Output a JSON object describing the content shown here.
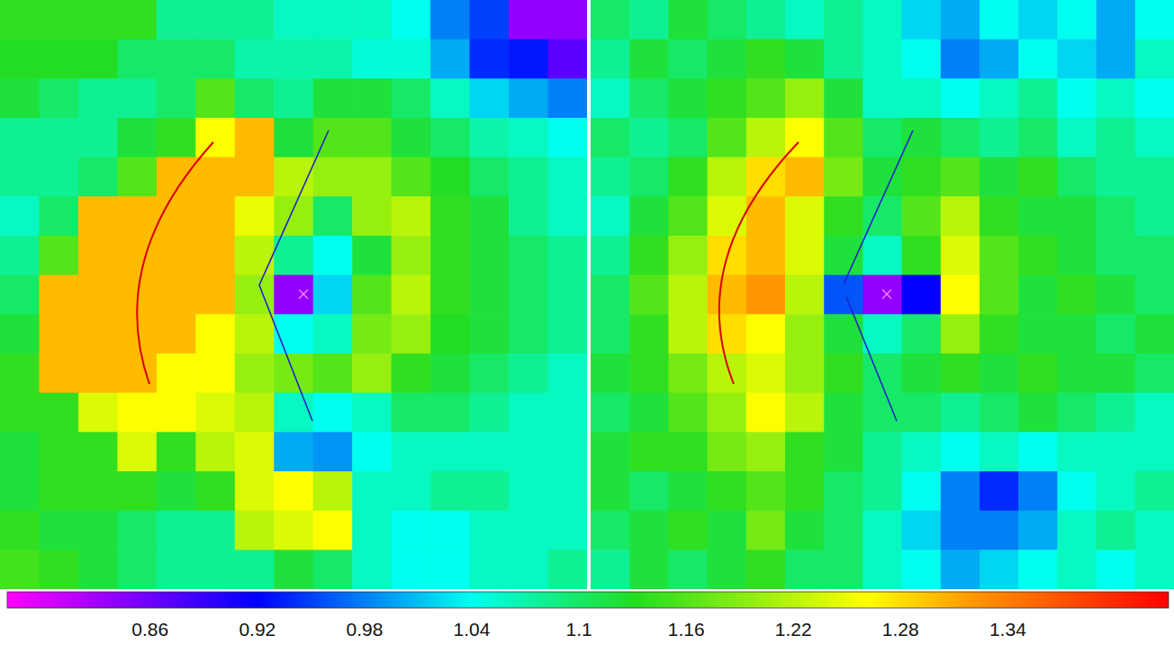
{
  "chart_data": {
    "type": "heatmap",
    "tick_labels": false,
    "panels": [
      {
        "cells": [
          [
            1.14,
            1.14,
            1.14,
            1.14,
            1.08,
            1.08,
            1.08,
            1.06,
            1.06,
            1.06,
            1.04,
            0.98,
            0.95,
            0.84,
            0.84
          ],
          [
            1.13,
            1.13,
            1.13,
            1.1,
            1.1,
            1.1,
            1.07,
            1.07,
            1.07,
            1.05,
            1.05,
            1.0,
            0.94,
            0.93,
            0.87
          ],
          [
            1.12,
            1.1,
            1.08,
            1.08,
            1.1,
            1.16,
            1.1,
            1.08,
            1.12,
            1.12,
            1.1,
            1.06,
            1.02,
            1.0,
            0.98
          ],
          [
            1.08,
            1.08,
            1.08,
            1.12,
            1.14,
            1.26,
            1.3,
            1.12,
            1.16,
            1.16,
            1.12,
            1.1,
            1.07,
            1.06,
            1.04
          ],
          [
            1.08,
            1.08,
            1.1,
            1.16,
            1.3,
            1.3,
            1.3,
            1.22,
            1.2,
            1.2,
            1.16,
            1.13,
            1.1,
            1.08,
            1.06
          ],
          [
            1.06,
            1.1,
            1.3,
            1.3,
            1.3,
            1.3,
            1.25,
            1.2,
            1.1,
            1.2,
            1.22,
            1.14,
            1.12,
            1.08,
            1.06
          ],
          [
            1.08,
            1.16,
            1.3,
            1.3,
            1.3,
            1.3,
            1.22,
            1.08,
            1.04,
            1.12,
            1.2,
            1.14,
            1.12,
            1.1,
            1.08
          ],
          [
            1.1,
            1.3,
            1.3,
            1.3,
            1.3,
            1.3,
            1.2,
            0.84,
            1.02,
            1.16,
            1.22,
            1.14,
            1.12,
            1.1,
            1.08
          ],
          [
            1.12,
            1.3,
            1.3,
            1.3,
            1.3,
            1.26,
            1.22,
            1.04,
            1.06,
            1.18,
            1.2,
            1.13,
            1.12,
            1.1,
            1.08
          ],
          [
            1.14,
            1.3,
            1.3,
            1.3,
            1.26,
            1.26,
            1.2,
            1.18,
            1.16,
            1.2,
            1.14,
            1.12,
            1.1,
            1.08,
            1.06
          ],
          [
            1.14,
            1.14,
            1.24,
            1.26,
            1.26,
            1.24,
            1.22,
            1.06,
            1.04,
            1.06,
            1.1,
            1.1,
            1.08,
            1.06,
            1.06
          ],
          [
            1.12,
            1.14,
            1.14,
            1.24,
            1.14,
            1.22,
            1.24,
            1.0,
            0.99,
            1.04,
            1.06,
            1.06,
            1.06,
            1.06,
            1.06
          ],
          [
            1.12,
            1.14,
            1.14,
            1.14,
            1.12,
            1.14,
            1.24,
            1.26,
            1.22,
            1.06,
            1.06,
            1.08,
            1.08,
            1.06,
            1.06
          ],
          [
            1.14,
            1.12,
            1.12,
            1.1,
            1.08,
            1.08,
            1.22,
            1.24,
            1.26,
            1.06,
            1.04,
            1.04,
            1.06,
            1.06,
            1.06
          ],
          [
            1.15,
            1.14,
            1.12,
            1.1,
            1.08,
            1.08,
            1.08,
            1.12,
            1.1,
            1.06,
            1.04,
            1.04,
            1.06,
            1.06,
            1.08
          ]
        ]
      },
      {
        "cells": [
          [
            1.1,
            1.08,
            1.12,
            1.1,
            1.08,
            1.06,
            1.08,
            1.06,
            1.02,
            1.0,
            1.04,
            1.02,
            1.04,
            1.0,
            1.04
          ],
          [
            1.08,
            1.12,
            1.1,
            1.12,
            1.14,
            1.12,
            1.08,
            1.06,
            1.04,
            0.98,
            1.0,
            1.04,
            1.02,
            1.0,
            1.06
          ],
          [
            1.06,
            1.1,
            1.12,
            1.14,
            1.16,
            1.2,
            1.12,
            1.06,
            1.06,
            1.04,
            1.06,
            1.08,
            1.04,
            1.06,
            1.04
          ],
          [
            1.1,
            1.08,
            1.1,
            1.16,
            1.22,
            1.26,
            1.16,
            1.1,
            1.12,
            1.1,
            1.08,
            1.1,
            1.06,
            1.08,
            1.06
          ],
          [
            1.08,
            1.1,
            1.14,
            1.22,
            1.28,
            1.3,
            1.18,
            1.12,
            1.14,
            1.16,
            1.12,
            1.14,
            1.1,
            1.08,
            1.08
          ],
          [
            1.06,
            1.12,
            1.16,
            1.24,
            1.3,
            1.24,
            1.14,
            1.1,
            1.16,
            1.22,
            1.14,
            1.12,
            1.12,
            1.1,
            1.08
          ],
          [
            1.08,
            1.14,
            1.2,
            1.28,
            1.3,
            1.24,
            1.12,
            1.06,
            1.14,
            1.24,
            1.16,
            1.14,
            1.12,
            1.1,
            1.1
          ],
          [
            1.1,
            1.16,
            1.22,
            1.3,
            1.32,
            1.22,
            0.96,
            0.84,
            0.92,
            1.26,
            1.16,
            1.12,
            1.14,
            1.12,
            1.1
          ],
          [
            1.1,
            1.14,
            1.22,
            1.28,
            1.26,
            1.2,
            1.12,
            1.06,
            1.1,
            1.2,
            1.14,
            1.12,
            1.12,
            1.1,
            1.12
          ],
          [
            1.12,
            1.14,
            1.18,
            1.22,
            1.24,
            1.2,
            1.14,
            1.1,
            1.12,
            1.14,
            1.12,
            1.14,
            1.12,
            1.12,
            1.1
          ],
          [
            1.1,
            1.12,
            1.16,
            1.2,
            1.26,
            1.22,
            1.12,
            1.1,
            1.1,
            1.08,
            1.1,
            1.12,
            1.1,
            1.08,
            1.06
          ],
          [
            1.12,
            1.14,
            1.14,
            1.18,
            1.2,
            1.14,
            1.12,
            1.08,
            1.06,
            1.04,
            1.06,
            1.04,
            1.06,
            1.06,
            1.06
          ],
          [
            1.12,
            1.1,
            1.12,
            1.14,
            1.16,
            1.14,
            1.1,
            1.08,
            1.04,
            0.98,
            0.94,
            0.98,
            1.04,
            1.06,
            1.08
          ],
          [
            1.1,
            1.12,
            1.14,
            1.12,
            1.18,
            1.12,
            1.1,
            1.06,
            1.02,
            0.98,
            0.98,
            1.0,
            1.06,
            1.08,
            1.06
          ],
          [
            1.08,
            1.12,
            1.1,
            1.12,
            1.14,
            1.1,
            1.1,
            1.06,
            1.04,
            1.0,
            1.02,
            1.04,
            1.06,
            1.04,
            1.06
          ]
        ]
      }
    ],
    "colorbar": {
      "range": [
        0.78,
        1.43
      ],
      "ticks": [
        0.86,
        0.92,
        0.98,
        1.04,
        1.1,
        1.16,
        1.22,
        1.28,
        1.34
      ]
    }
  }
}
